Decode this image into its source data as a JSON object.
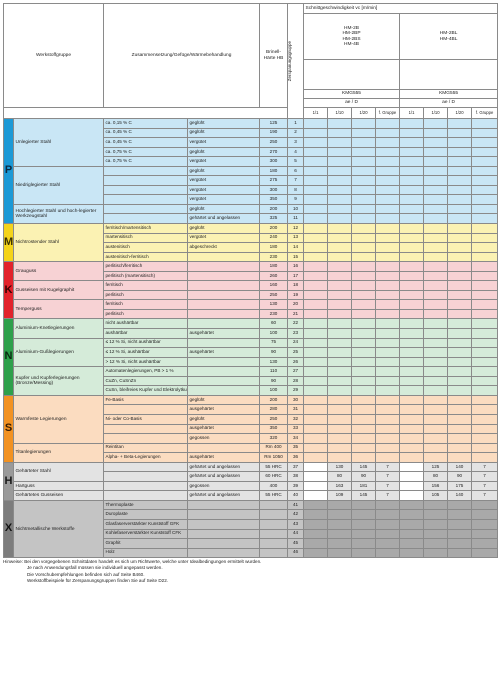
{
  "header": {
    "werkstoffgruppe": "Werkstoffgruppe",
    "zusammensetzung": "Zusammensetzung/Gefüge/Wärmebehandlung",
    "brinell": "Brinell-Härte HB",
    "zerspanungsgruppe": "Zerspanungsgruppe",
    "schnittgeschwindigkeit": "Schnittgeschwindigkeit vc [m/min]",
    "grades_left": [
      "HM-2B",
      "HM-2BP",
      "HM-2BS",
      "HM-4B"
    ],
    "grades_right": [
      "HM-2BL",
      "HM-4BL"
    ],
    "kmg_left": "KMG555",
    "kmg_right": "KMG555",
    "ae_left": "ae / D",
    "ae_right": "ae / D",
    "subcols": [
      "1/1",
      "1/10",
      "1/20",
      "f. Gruppe",
      "1/1",
      "1/10",
      "1/20",
      "f. Gruppe"
    ]
  },
  "groups": [
    {
      "letter": "P",
      "rows": [
        {
          "wg": "Unlegierter Stahl",
          "comp": "ca. 0,15 % C",
          "heat": "geglüht",
          "hb": "125",
          "zg": "1"
        },
        {
          "comp": "ca. 0,45 % C",
          "heat": "geglüht",
          "hb": "190",
          "zg": "2"
        },
        {
          "comp": "ca. 0,45 % C",
          "heat": "vergütet",
          "hb": "250",
          "zg": "3"
        },
        {
          "comp": "ca. 0,75 % C",
          "heat": "geglüht",
          "hb": "270",
          "zg": "4"
        },
        {
          "comp": "ca. 0,75 % C",
          "heat": "vergütet",
          "hb": "300",
          "zg": "5"
        },
        {
          "wg": "Niedriglegierter Stahl",
          "comp": "",
          "heat": "geglüht",
          "hb": "180",
          "zg": "6"
        },
        {
          "comp": "",
          "heat": "vergütet",
          "hb": "275",
          "zg": "7"
        },
        {
          "comp": "",
          "heat": "vergütet",
          "hb": "300",
          "zg": "8"
        },
        {
          "comp": "",
          "heat": "vergütet",
          "hb": "350",
          "zg": "9"
        },
        {
          "wg": "Hochlegierter Stahl und hoch-legierter Werkzeugstahl",
          "comp": "",
          "heat": "geglüht",
          "hb": "200",
          "zg": "10"
        },
        {
          "comp": "",
          "heat": "gehärtet und angelassen",
          "hb": "325",
          "zg": "11"
        }
      ]
    },
    {
      "letter": "M",
      "rows": [
        {
          "wg": "Nichtrostender Stahl",
          "comp": "ferritisch/martensitisch",
          "heat": "geglüht",
          "hb": "200",
          "zg": "12"
        },
        {
          "comp": "martensitisch",
          "heat": "vergütet",
          "hb": "240",
          "zg": "13"
        },
        {
          "comp": "austenitisch",
          "heat": "abgeschreckt",
          "hb": "180",
          "zg": "14"
        },
        {
          "comp": "austenitisch-ferritisch",
          "heat": "",
          "hb": "230",
          "zg": "15"
        }
      ]
    },
    {
      "letter": "K",
      "rows": [
        {
          "wg": "Grauguss",
          "comp": "perlitisch/ferritisch",
          "heat": "",
          "hb": "180",
          "zg": "16"
        },
        {
          "comp": "perlitisch (martensitisch)",
          "heat": "",
          "hb": "260",
          "zg": "17"
        },
        {
          "wg": "Gusseisen mit Kugelgraphit",
          "comp": "ferritisch",
          "heat": "",
          "hb": "160",
          "zg": "18"
        },
        {
          "comp": "perlitisch",
          "heat": "",
          "hb": "250",
          "zg": "19"
        },
        {
          "wg": "Temperguss",
          "comp": "ferritisch",
          "heat": "",
          "hb": "130",
          "zg": "20"
        },
        {
          "comp": "perlitisch",
          "heat": "",
          "hb": "230",
          "zg": "21"
        }
      ]
    },
    {
      "letter": "N",
      "rows": [
        {
          "wg": "Aluminium-Knetlegierungen",
          "comp": "nicht aushärtbar",
          "heat": "",
          "hb": "60",
          "zg": "22"
        },
        {
          "comp": "aushärtbar",
          "heat": "ausgehärtet",
          "hb": "100",
          "zg": "23"
        },
        {
          "wg": "Aluminium-Gußlegierungen",
          "comp": "≤ 12 % Si, nicht aushärtbar",
          "heat": "",
          "hb": "75",
          "zg": "24"
        },
        {
          "comp": "≤ 12 % Si, aushärtbar",
          "heat": "ausgehärtet",
          "hb": "90",
          "zg": "25"
        },
        {
          "comp": "> 12 % Si, nicht aushärtbar",
          "heat": "",
          "hb": "130",
          "zg": "26"
        },
        {
          "wg": "Kupfer und Kupferlegierungen (Bronze/Messing)",
          "comp": "Automatenlegierungen, PB > 1 %",
          "heat": "",
          "hb": "110",
          "zg": "27"
        },
        {
          "comp": "CuZn, CuSnZn",
          "heat": "",
          "hb": "90",
          "zg": "28"
        },
        {
          "comp": "CuSn, bleifreies Kupfer und Elektrolytkupfer",
          "heat": "",
          "hb": "100",
          "zg": "29"
        }
      ]
    },
    {
      "letter": "S",
      "rows": [
        {
          "wg": "Warmfeste Legierungen",
          "comp": "Fe-Basis",
          "heat": "geglüht",
          "hb": "200",
          "zg": "30"
        },
        {
          "comp": "",
          "heat": "ausgehärtet",
          "hb": "280",
          "zg": "31"
        },
        {
          "comp": "Ni- oder Co-Basis",
          "heat": "geglüht",
          "hb": "250",
          "zg": "32"
        },
        {
          "comp": "",
          "heat": "ausgehärtet",
          "hb": "350",
          "zg": "33"
        },
        {
          "comp": "",
          "heat": "gegossen",
          "hb": "320",
          "zg": "34"
        },
        {
          "wg": "Titanlegierungen",
          "comp": "Reintitan",
          "heat": "",
          "hb": "Rm 400",
          "zg": "35"
        },
        {
          "comp": "Alpha- + Beta-Legierungen",
          "heat": "ausgehärtet",
          "hb": "Rm 1050",
          "zg": "36"
        }
      ]
    },
    {
      "letter": "H",
      "rows": [
        {
          "wg": "Gehärteter Stahl",
          "comp": "",
          "heat": "gehärtet und angelassen",
          "hb": "55 HRC",
          "zg": "37",
          "v": [
            "",
            "130",
            "145",
            "7",
            "",
            "125",
            "140",
            "7"
          ]
        },
        {
          "comp": "",
          "heat": "gehärtet und angelassen",
          "hb": "60 HRC",
          "zg": "38",
          "v": [
            "",
            "80",
            "90",
            "7",
            "",
            "80",
            "90",
            "7"
          ]
        },
        {
          "wg": "Hartguss",
          "comp": "",
          "heat": "gegossen",
          "hb": "400",
          "zg": "39",
          "v": [
            "",
            "163",
            "181",
            "7",
            "",
            "156",
            "175",
            "7"
          ]
        },
        {
          "wg": "Gehärtetes Gusseisen",
          "comp": "",
          "heat": "gehärtet und angelassen",
          "hb": "55 HRC",
          "zg": "40",
          "v": [
            "",
            "109",
            "145",
            "7",
            "",
            "105",
            "140",
            "7"
          ]
        }
      ]
    },
    {
      "letter": "X",
      "rows": [
        {
          "wg": "Nichtmetallische Werkstoffe",
          "comp": "Thermoplaste",
          "heat": "",
          "hb": "",
          "zg": "41"
        },
        {
          "comp": "Duroplaste",
          "heat": "",
          "hb": "",
          "zg": "42"
        },
        {
          "comp": "Glasfaserverstärkter Kunststoff GFK",
          "heat": "",
          "hb": "",
          "zg": "43"
        },
        {
          "comp": "Kohlefaserverstärkter Kunststoff CFK",
          "heat": "",
          "hb": "",
          "zg": "44"
        },
        {
          "comp": "Graphit",
          "heat": "",
          "hb": "",
          "zg": "45"
        },
        {
          "comp": "Holz",
          "heat": "",
          "hb": "",
          "zg": "46"
        }
      ]
    }
  ],
  "notes": [
    "Hinweise: Bei den vorgegebenen Schnittdaten handelt es sich um Richtwerte, welche unter Idealbedingungen ermittelt wurden.",
    "Je nach Anwendungsfall müssen sie individuell angepasst werden.",
    "Die Vorschubempfehlungen befinden sich auf Seite B460.",
    "Werkstoffbeispiele für Zerspanungsgruppen finden Sie auf Seite D22."
  ],
  "colors": {
    "P": "#1c99d6",
    "M": "#f4d31a",
    "K": "#e2222b",
    "N": "#2ea04b",
    "S": "#f29222",
    "H": "#9a9a9a",
    "X": "#7d7d7d"
  }
}
